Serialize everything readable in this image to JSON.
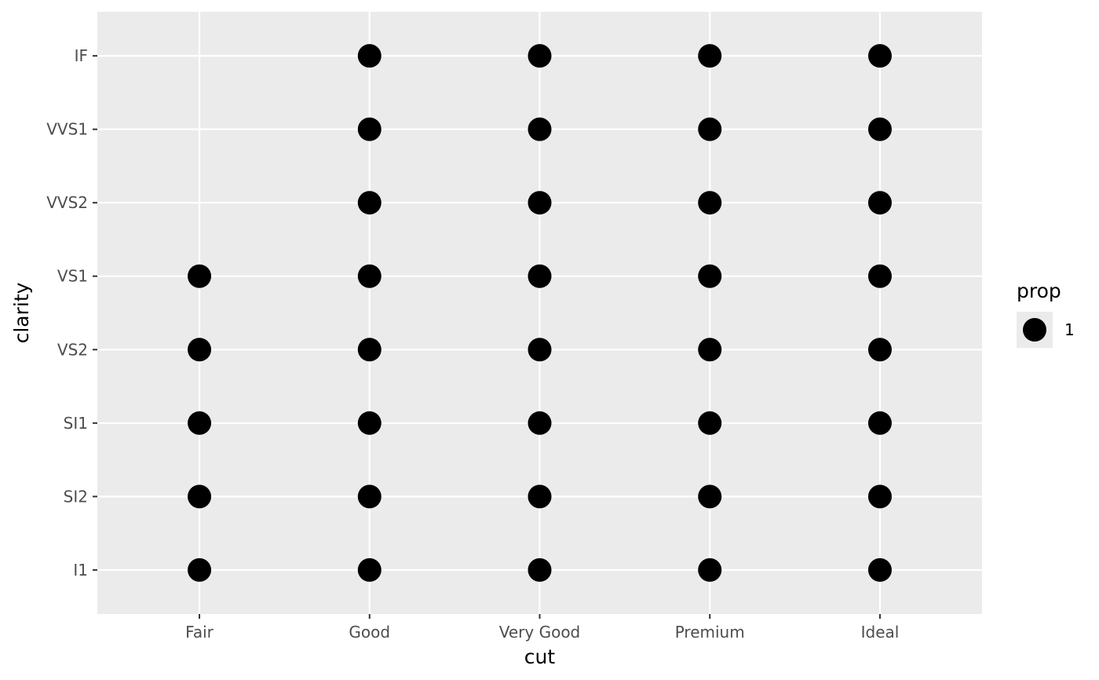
{
  "chart_data": {
    "type": "scatter",
    "title": "",
    "xlabel": "cut",
    "ylabel": "clarity",
    "x_categories": [
      "Fair",
      "Good",
      "Very Good",
      "Premium",
      "Ideal"
    ],
    "y_categories": [
      "I1",
      "SI2",
      "SI1",
      "VS2",
      "VS1",
      "VVS2",
      "VVS1",
      "IF"
    ],
    "points": [
      {
        "x": "Fair",
        "y": "I1",
        "prop": 1
      },
      {
        "x": "Fair",
        "y": "SI2",
        "prop": 1
      },
      {
        "x": "Fair",
        "y": "SI1",
        "prop": 1
      },
      {
        "x": "Fair",
        "y": "VS2",
        "prop": 1
      },
      {
        "x": "Fair",
        "y": "VS1",
        "prop": 1
      },
      {
        "x": "Good",
        "y": "I1",
        "prop": 1
      },
      {
        "x": "Good",
        "y": "SI2",
        "prop": 1
      },
      {
        "x": "Good",
        "y": "SI1",
        "prop": 1
      },
      {
        "x": "Good",
        "y": "VS2",
        "prop": 1
      },
      {
        "x": "Good",
        "y": "VS1",
        "prop": 1
      },
      {
        "x": "Good",
        "y": "VVS2",
        "prop": 1
      },
      {
        "x": "Good",
        "y": "VVS1",
        "prop": 1
      },
      {
        "x": "Good",
        "y": "IF",
        "prop": 1
      },
      {
        "x": "Very Good",
        "y": "I1",
        "prop": 1
      },
      {
        "x": "Very Good",
        "y": "SI2",
        "prop": 1
      },
      {
        "x": "Very Good",
        "y": "SI1",
        "prop": 1
      },
      {
        "x": "Very Good",
        "y": "VS2",
        "prop": 1
      },
      {
        "x": "Very Good",
        "y": "VS1",
        "prop": 1
      },
      {
        "x": "Very Good",
        "y": "VVS2",
        "prop": 1
      },
      {
        "x": "Very Good",
        "y": "VVS1",
        "prop": 1
      },
      {
        "x": "Very Good",
        "y": "IF",
        "prop": 1
      },
      {
        "x": "Premium",
        "y": "I1",
        "prop": 1
      },
      {
        "x": "Premium",
        "y": "SI2",
        "prop": 1
      },
      {
        "x": "Premium",
        "y": "SI1",
        "prop": 1
      },
      {
        "x": "Premium",
        "y": "VS2",
        "prop": 1
      },
      {
        "x": "Premium",
        "y": "VS1",
        "prop": 1
      },
      {
        "x": "Premium",
        "y": "VVS2",
        "prop": 1
      },
      {
        "x": "Premium",
        "y": "VVS1",
        "prop": 1
      },
      {
        "x": "Premium",
        "y": "IF",
        "prop": 1
      },
      {
        "x": "Ideal",
        "y": "I1",
        "prop": 1
      },
      {
        "x": "Ideal",
        "y": "SI2",
        "prop": 1
      },
      {
        "x": "Ideal",
        "y": "SI1",
        "prop": 1
      },
      {
        "x": "Ideal",
        "y": "VS2",
        "prop": 1
      },
      {
        "x": "Ideal",
        "y": "VS1",
        "prop": 1
      },
      {
        "x": "Ideal",
        "y": "VVS2",
        "prop": 1
      },
      {
        "x": "Ideal",
        "y": "VVS1",
        "prop": 1
      },
      {
        "x": "Ideal",
        "y": "IF",
        "prop": 1
      }
    ],
    "legend": {
      "title": "prop",
      "entries": [
        {
          "label": "1",
          "prop": 1
        }
      ],
      "placement": "right"
    },
    "grid": true,
    "colors": {
      "panel_background": "#ebebeb",
      "grid_line": "#ffffff",
      "point": "#000000",
      "tick_label": "#4d4d4d",
      "tick_mark": "#333333"
    }
  }
}
